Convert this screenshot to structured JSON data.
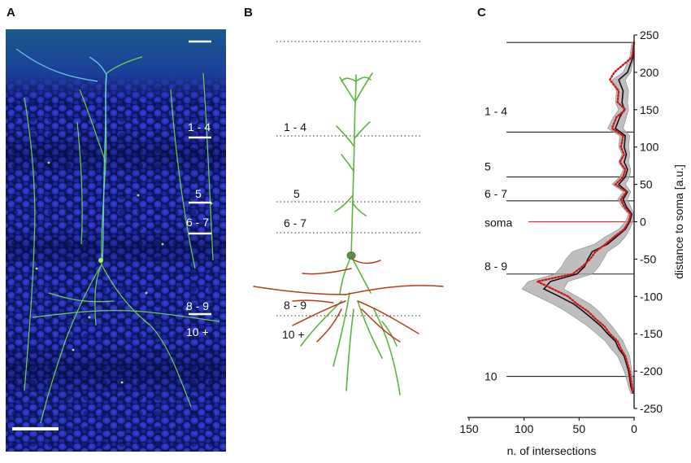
{
  "panels": {
    "a": {
      "letter": "A",
      "layer_labels": [
        "1 - 4",
        "5",
        "6 - 7",
        "8 - 9",
        "10 +"
      ]
    },
    "b": {
      "letter": "B",
      "layer_labels": [
        "1 - 4",
        "5",
        "6 - 7",
        "8 - 9",
        "10 +"
      ]
    },
    "c": {
      "letter": "C",
      "layer_labels": [
        "1 - 4",
        "5",
        "6 - 7",
        "soma",
        "8 - 9",
        "10"
      ]
    }
  },
  "colors": {
    "tissue_background": "#1a2a8a",
    "neurite_green": "#4caf3a",
    "neurite_red": "#b83a1c",
    "soma_line": "#e0302a",
    "mean_trace": "#111111",
    "band": "#a8a8a8",
    "dotted_trace": "#d01818"
  },
  "chart_data": {
    "type": "line",
    "xlabel": "n. of intersections",
    "ylabel": "distance to soma [a.u.]",
    "xlim": [
      150,
      0
    ],
    "ylim": [
      -250,
      250
    ],
    "x_ticks": [
      150,
      100,
      50,
      0
    ],
    "y_ticks": [
      250,
      200,
      150,
      100,
      50,
      0,
      -50,
      -100,
      -150,
      -200,
      -250
    ],
    "layer_boundaries": [
      {
        "label": "",
        "y": 240
      },
      {
        "label": "1 - 4",
        "y": 120
      },
      {
        "label": "5",
        "y": 60
      },
      {
        "label": "6 - 7",
        "y": 28
      },
      {
        "label": "soma",
        "y": 0
      },
      {
        "label": "8 - 9",
        "y": -70
      },
      {
        "label": "10",
        "y": -207
      }
    ],
    "series": [
      {
        "y": [
          240,
          220,
          200,
          190,
          175,
          160,
          150,
          140,
          125,
          115,
          100,
          90,
          80,
          70,
          60,
          50,
          40,
          30,
          20,
          10,
          0,
          -10,
          -20,
          -30,
          -40,
          -50,
          -60,
          -70,
          -80,
          -90,
          -100,
          -110,
          -120,
          -130,
          -140,
          -150,
          -160,
          -170,
          -180,
          -190,
          -200,
          -210,
          -220,
          -230
        ],
        "mean": [
          0,
          1,
          6,
          14,
          10,
          11,
          9,
          13,
          17,
          8,
          9,
          7,
          9,
          6,
          8,
          14,
          6,
          10,
          7,
          2,
          4,
          8,
          16,
          24,
          38,
          42,
          45,
          52,
          76,
          82,
          68,
          55,
          46,
          38,
          30,
          24,
          17,
          14,
          9,
          7,
          5,
          4,
          3,
          1
        ],
        "low": [
          0,
          0,
          3,
          8,
          5,
          6,
          5,
          7,
          10,
          4,
          5,
          4,
          5,
          3,
          4,
          8,
          3,
          6,
          3,
          0,
          1,
          4,
          8,
          14,
          24,
          28,
          32,
          38,
          60,
          64,
          52,
          40,
          32,
          26,
          20,
          15,
          10,
          7,
          4,
          3,
          2,
          1,
          1,
          0
        ],
        "high": [
          2,
          4,
          10,
          20,
          16,
          17,
          14,
          19,
          24,
          13,
          14,
          11,
          14,
          10,
          13,
          20,
          10,
          15,
          11,
          5,
          8,
          14,
          26,
          36,
          56,
          62,
          66,
          72,
          96,
          102,
          88,
          74,
          62,
          52,
          42,
          34,
          26,
          21,
          15,
          12,
          9,
          7,
          5,
          3
        ]
      },
      {
        "y": [
          240,
          220,
          200,
          190,
          175,
          160,
          150,
          140,
          125,
          115,
          100,
          90,
          80,
          70,
          60,
          50,
          40,
          30,
          20,
          10,
          0,
          -10,
          -20,
          -30,
          -40,
          -50,
          -60,
          -70,
          -80,
          -90,
          -100,
          -110,
          -120,
          -130,
          -140,
          -150,
          -160,
          -170,
          -180,
          -190,
          -200,
          -210,
          -220,
          -230
        ],
        "values": [
          0,
          2,
          18,
          22,
          14,
          15,
          8,
          16,
          20,
          10,
          12,
          9,
          13,
          8,
          10,
          17,
          7,
          12,
          9,
          3,
          5,
          9,
          18,
          26,
          35,
          40,
          47,
          56,
          88,
          74,
          60,
          52,
          42,
          35,
          27,
          22,
          15,
          12,
          8,
          6,
          4,
          3,
          2,
          1
        ]
      }
    ]
  }
}
